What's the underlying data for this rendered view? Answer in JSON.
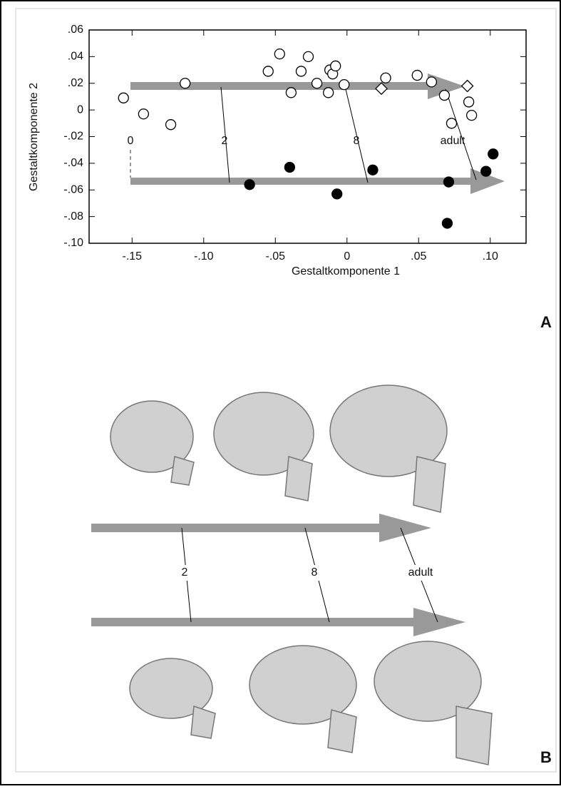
{
  "chart_data": {
    "type": "scatter",
    "xlabel": "Gestaltkomponente 1",
    "ylabel": "Gestaltkomponente 2",
    "xlim": [
      -0.18,
      0.125
    ],
    "ylim": [
      -0.1,
      0.06
    ],
    "xticks": [
      {
        "value": -0.15,
        "label": "-.15"
      },
      {
        "value": -0.1,
        "label": "-.10"
      },
      {
        "value": -0.05,
        "label": "-.05"
      },
      0,
      {
        "value": 0.05,
        "label": ".05"
      },
      {
        "value": 0.1,
        "label": ".10"
      }
    ],
    "yticks": [
      {
        "value": 0.06,
        "label": ".06"
      },
      {
        "value": 0.04,
        "label": ".04"
      },
      {
        "value": 0.02,
        "label": ".02"
      },
      0,
      {
        "value": -0.02,
        "label": "-.02"
      },
      {
        "value": -0.04,
        "label": "-.04"
      },
      {
        "value": -0.06,
        "label": "-.06"
      },
      {
        "value": -0.08,
        "label": "-.08"
      },
      {
        "value": -0.1,
        "label": "-.10"
      }
    ],
    "series": [
      {
        "marker": "circle",
        "color": "#ffffff",
        "x": [
          -0.156,
          -0.142,
          -0.123,
          -0.113,
          -0.055,
          -0.047,
          -0.039,
          -0.032,
          -0.027,
          -0.021,
          -0.013,
          -0.012,
          -0.01,
          -0.008,
          -0.002,
          0.027,
          0.049,
          0.059,
          0.068,
          0.073,
          0.085,
          0.087
        ],
        "values": [
          0.009,
          -0.003,
          -0.011,
          0.02,
          0.029,
          0.042,
          0.013,
          0.029,
          0.04,
          0.02,
          0.013,
          0.03,
          0.027,
          0.033,
          0.019,
          0.024,
          0.026,
          0.021,
          0.011,
          -0.01,
          0.006,
          -0.004
        ]
      },
      {
        "marker": "diamond",
        "color": "#ffffff",
        "x": [
          0.024,
          0.084
        ],
        "values": [
          0.016,
          0.018
        ]
      },
      {
        "marker": "circle",
        "color": "#000000",
        "x": [
          -0.068,
          -0.04,
          -0.007,
          0.018,
          0.071,
          0.07,
          0.097,
          0.102
        ],
        "values": [
          -0.056,
          -0.043,
          -0.063,
          -0.045,
          -0.054,
          -0.085,
          -0.046,
          -0.033
        ]
      }
    ],
    "annotations": [
      "0",
      "2",
      "8",
      "adult"
    ]
  },
  "panel_labels": [
    "A",
    "B"
  ],
  "diagram": {
    "stage_labels": [
      "2",
      "8",
      "adult"
    ]
  }
}
